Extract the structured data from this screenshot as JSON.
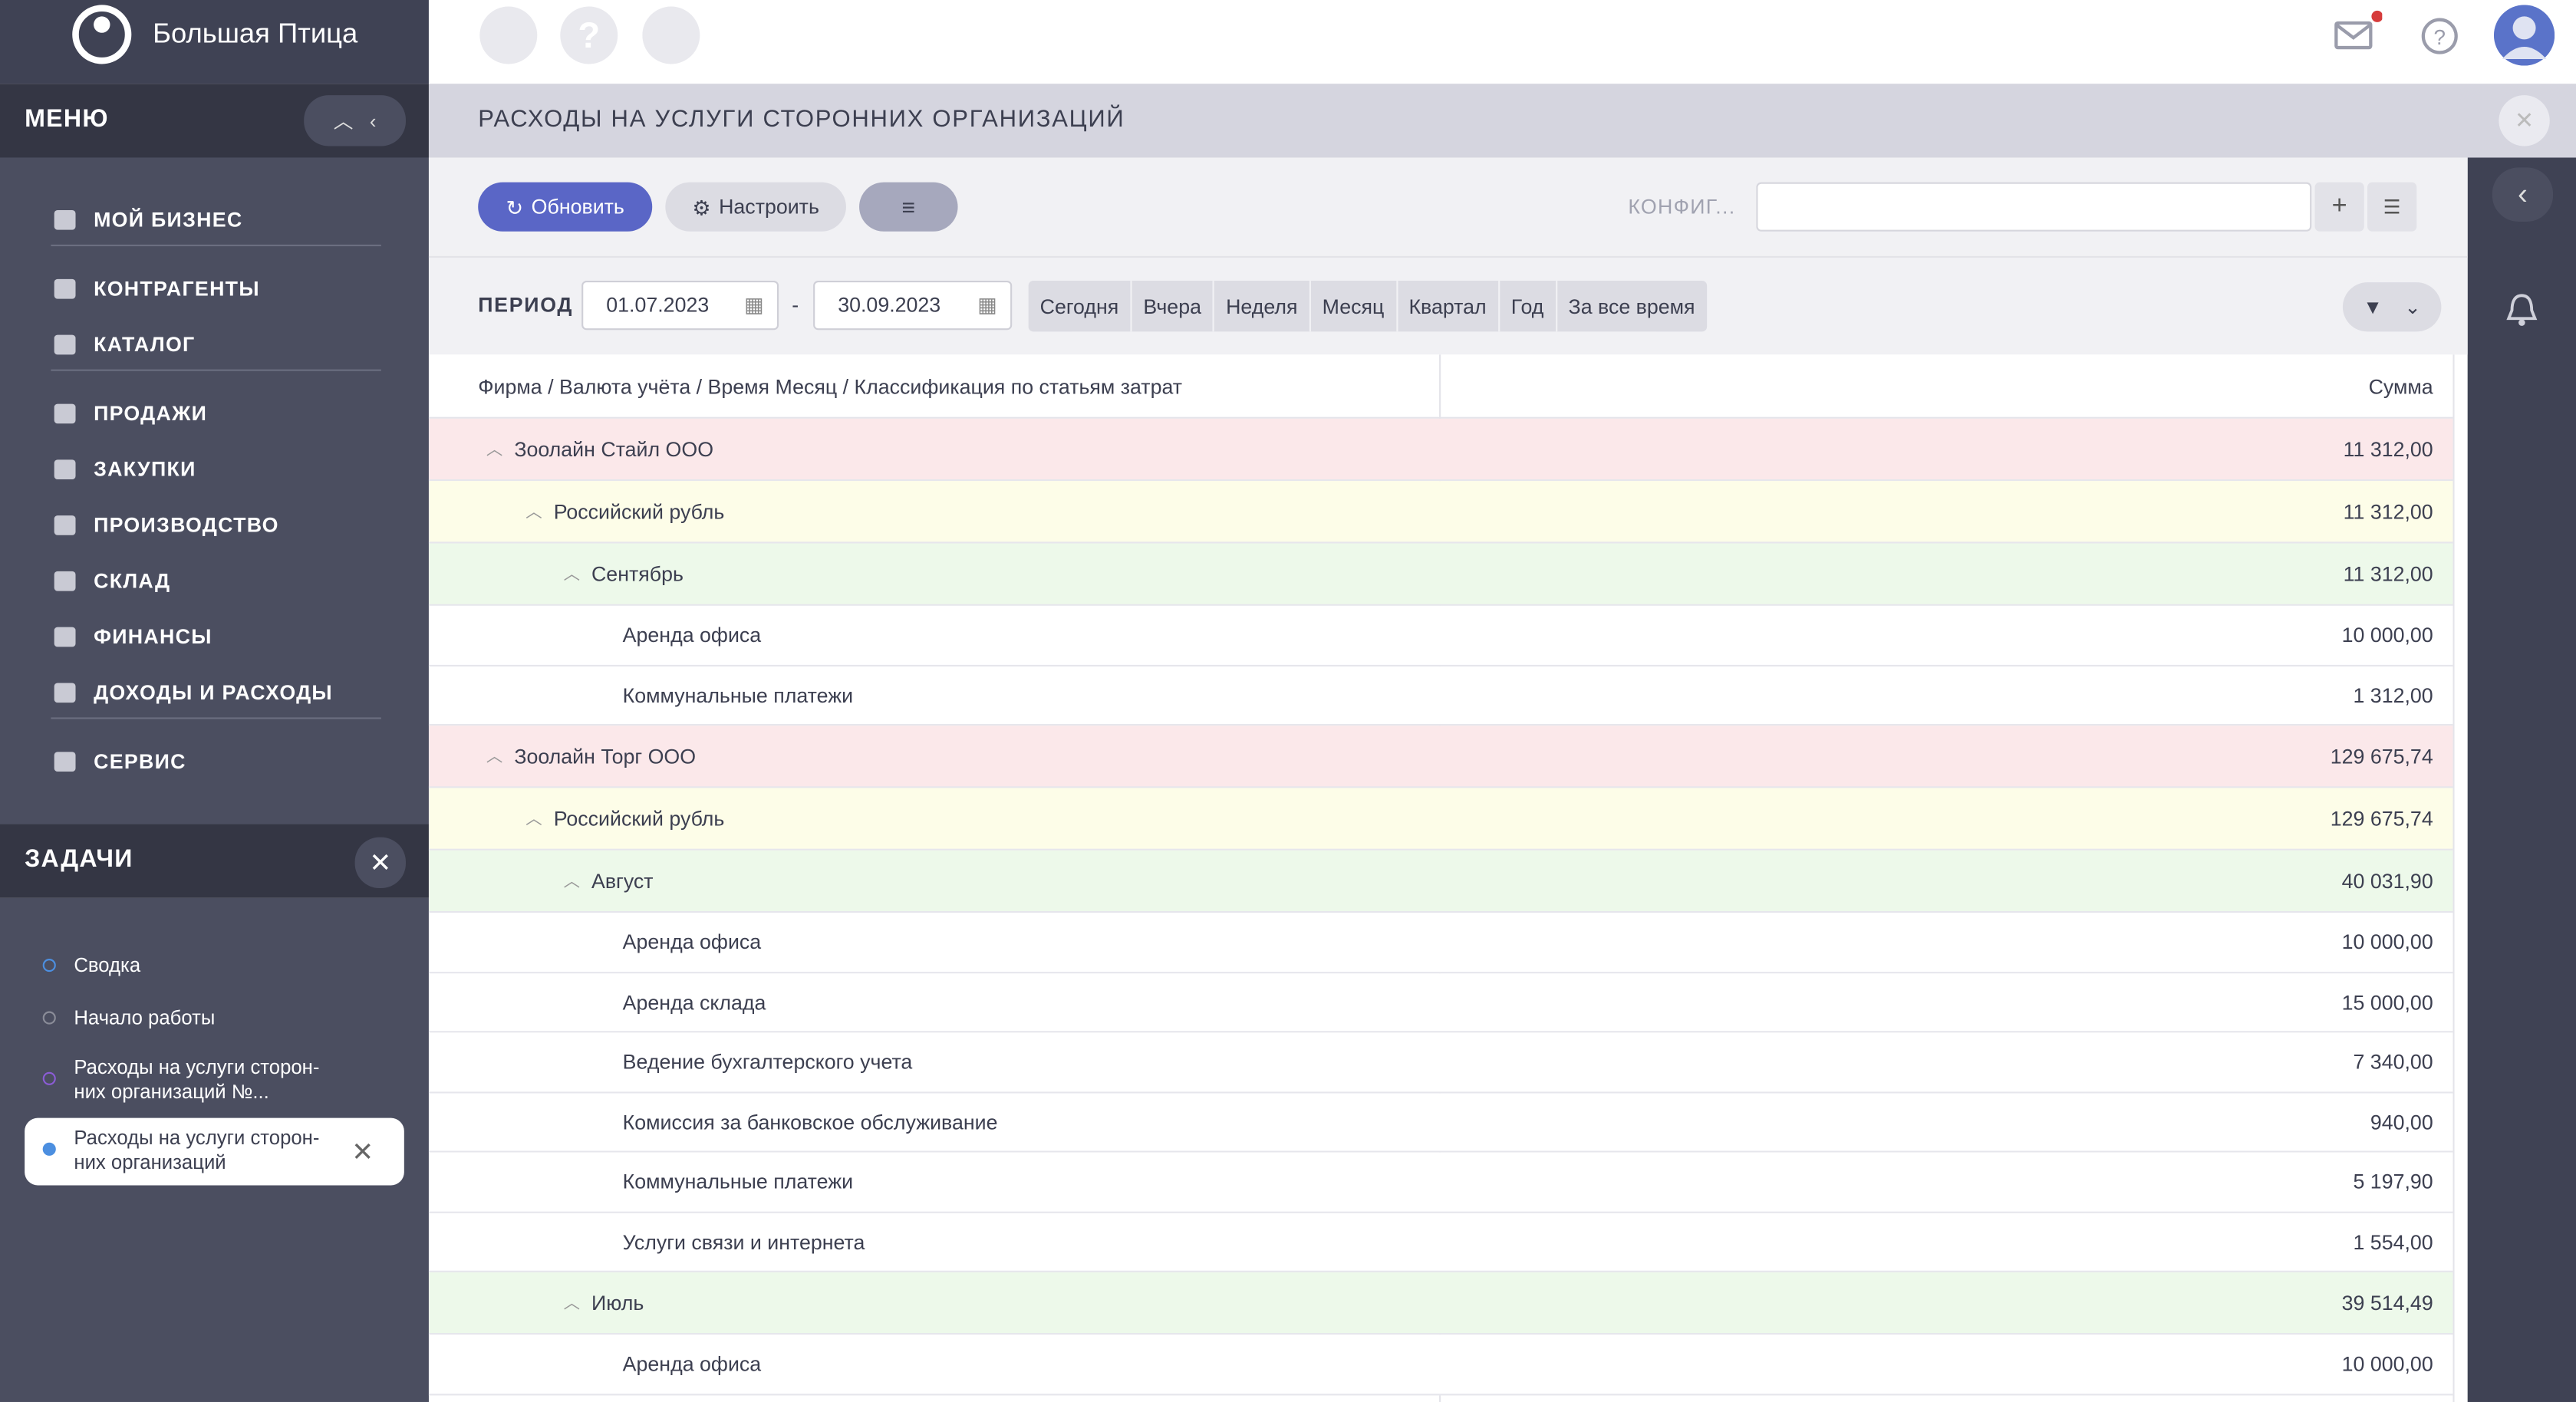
{
  "sidebar": {
    "brand": "Большая Птица",
    "menu_title": "МЕНЮ",
    "menu_groups": [
      [
        "МОЙ БИЗНЕС"
      ],
      [
        "КОНТРАГЕНТЫ",
        "КАТАЛОГ"
      ],
      [
        "ПРОДАЖИ",
        "ЗАКУПКИ",
        "ПРОИЗВОДСТВО",
        "СКЛАД",
        "ФИНАНСЫ",
        "ДОХОДЫ И РАСХОДЫ"
      ],
      [
        "СЕРВИС"
      ]
    ],
    "tasks_title": "ЗАДАЧИ",
    "tasks": [
      {
        "label": "Сводка",
        "color": "#4c8fe0"
      },
      {
        "label": "Начало работы",
        "color": "#8a8c98"
      },
      {
        "label": "Расходы на услуги сторон-\nних организаций №...",
        "color": "#8b5cd6"
      },
      {
        "label": "Расходы на услуги сторон-\nних организаций",
        "color": "#4c8fe0",
        "active": true
      }
    ]
  },
  "page": {
    "title": "РАСХОДЫ НА УСЛУГИ СТОРОННИХ ОРГАНИЗАЦИЙ",
    "toolbar": {
      "refresh": "Обновить",
      "settings": "Настроить",
      "config_label": "КОНФИГ..."
    },
    "period": {
      "label": "ПЕРИОД",
      "from": "01.07.2023",
      "separator": "-",
      "to": "30.09.2023",
      "quick": [
        "Сегодня",
        "Вчера",
        "Неделя",
        "Месяц",
        "Квартал",
        "Год",
        "За все время"
      ]
    }
  },
  "table": {
    "columns": [
      "Фирма / Валюта учёта / Время Месяц / Классификация по статьям затрат",
      "Сумма"
    ],
    "rows": [
      {
        "level": 0,
        "label": "Зоолайн Стайл ООО",
        "sum": "11 312,00"
      },
      {
        "level": 1,
        "label": "Российский рубль",
        "sum": "11 312,00"
      },
      {
        "level": 2,
        "label": "Сентябрь",
        "sum": "11 312,00"
      },
      {
        "level": 3,
        "label": "Аренда офиса",
        "sum": "10 000,00"
      },
      {
        "level": 3,
        "label": "Коммунальные платежи",
        "sum": "1 312,00"
      },
      {
        "level": 0,
        "label": "Зоолайн Торг ООО",
        "sum": "129 675,74"
      },
      {
        "level": 1,
        "label": "Российский рубль",
        "sum": "129 675,74"
      },
      {
        "level": 2,
        "label": "Август",
        "sum": "40 031,90"
      },
      {
        "level": 3,
        "label": "Аренда офиса",
        "sum": "10 000,00"
      },
      {
        "level": 3,
        "label": "Аренда склада",
        "sum": "15 000,00"
      },
      {
        "level": 3,
        "label": "Ведение бухгалтерского учета",
        "sum": "7 340,00"
      },
      {
        "level": 3,
        "label": "Комиссия за банковское обслуживание",
        "sum": "940,00"
      },
      {
        "level": 3,
        "label": "Коммунальные платежи",
        "sum": "5 197,90"
      },
      {
        "level": 3,
        "label": "Услуги связи и интернета",
        "sum": "1 554,00"
      },
      {
        "level": 2,
        "label": "Июль",
        "sum": "39 514,49"
      },
      {
        "level": 3,
        "label": "Аренда офиса",
        "sum": "10 000,00"
      }
    ]
  }
}
